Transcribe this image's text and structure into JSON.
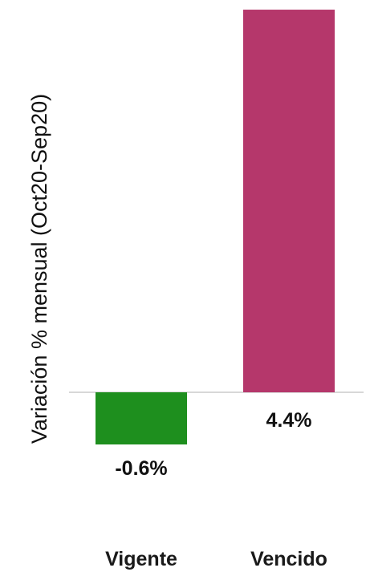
{
  "chart_data": {
    "type": "bar",
    "title": "",
    "xlabel": "",
    "ylabel": "Variación % mensual (Oct20-Sep20)",
    "categories": [
      "Vigente",
      "Vencido"
    ],
    "values": [
      -0.6,
      4.4
    ],
    "data_labels": [
      "-0.6%",
      "4.4%"
    ],
    "colors": [
      "#1e8f1e",
      "#b5376b"
    ],
    "ylim": [
      -1.0,
      4.4
    ],
    "grid": false,
    "legend": "none"
  }
}
